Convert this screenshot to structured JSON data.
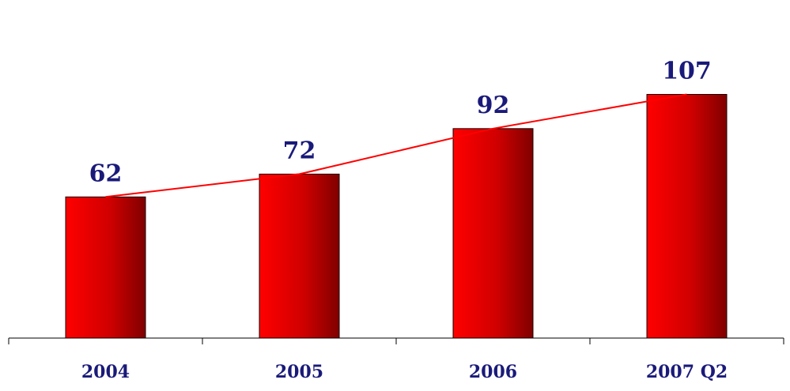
{
  "chart_data": {
    "type": "bar",
    "categories": [
      "2004",
      "2005",
      "2006",
      "2007 Q2"
    ],
    "values": [
      62,
      72,
      92,
      107
    ],
    "data_labels": [
      "62",
      "72",
      "92",
      "107"
    ],
    "title": "",
    "xlabel": "",
    "ylabel": "",
    "ylim": [
      0,
      125
    ],
    "trend_line": true,
    "grid": false,
    "legend": "none",
    "colors": {
      "bar_light": "#ff0000",
      "bar_dark": "#800000",
      "bar_outline": "#1a0000",
      "trend_line": "#ff0000",
      "label_text": "#1a1a7a",
      "axis": "#000000"
    }
  }
}
